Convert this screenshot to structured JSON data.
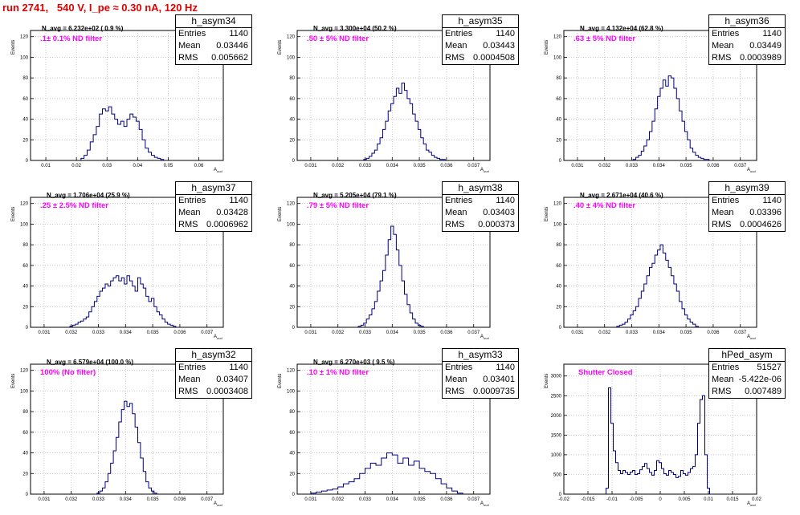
{
  "page_title": "run 2741,   540 V, I_pe ≈ 0.30 nA, 120 Hz",
  "y_axis_label": "Events",
  "x_axis_label": "A",
  "x_axis_label_sub": "uud",
  "colors": {
    "title": "#e00000",
    "filter_label": "#ff00ff",
    "histogram": "#000080",
    "grid": "#b0b0b0"
  },
  "pads": [
    {
      "name": "h_asym34",
      "entries": "1140",
      "mean": "0.03446",
      "rms": "0.005662",
      "navg": "N_avg = 6.232e+02 ( 0.9 %)",
      "filter": ".1± 0.1% ND filter",
      "chart_data": {
        "type": "histogram",
        "xlim": [
          0.005,
          0.068
        ],
        "ylim": [
          0,
          126
        ],
        "xticks": [
          0.01,
          0.02,
          0.03,
          0.04,
          0.05,
          0.06
        ],
        "xtick_labels": [
          "0.01",
          "0.02",
          "0.03",
          "0.04",
          "0.05",
          "0.06"
        ],
        "yticks": [
          0,
          20,
          40,
          60,
          80,
          100,
          120
        ],
        "x": [
          0.022,
          0.023,
          0.024,
          0.025,
          0.026,
          0.027,
          0.028,
          0.029,
          0.03,
          0.031,
          0.032,
          0.033,
          0.034,
          0.035,
          0.036,
          0.037,
          0.038,
          0.039,
          0.04,
          0.041,
          0.042,
          0.043,
          0.044,
          0.045,
          0.046,
          0.047,
          0.048
        ],
        "values": [
          2,
          5,
          10,
          18,
          25,
          33,
          45,
          50,
          48,
          52,
          45,
          40,
          35,
          38,
          33,
          40,
          45,
          42,
          38,
          30,
          20,
          12,
          8,
          5,
          3,
          2,
          1
        ]
      }
    },
    {
      "name": "h_asym35",
      "entries": "1140",
      "mean": "0.03443",
      "rms": "0.0004508",
      "navg": "N_avg = 3.300e+04 (50.2 %)",
      "filter": ".50 ± 5% ND filter",
      "chart_data": {
        "type": "histogram",
        "xlim": [
          0.0305,
          0.0376
        ],
        "ylim": [
          0,
          126
        ],
        "xticks": [
          0.031,
          0.032,
          0.033,
          0.034,
          0.035,
          0.036,
          0.037
        ],
        "xtick_labels": [
          "0.031",
          "0.032",
          "0.033",
          "0.034",
          "0.035",
          "0.036",
          "0.037"
        ],
        "yticks": [
          0,
          20,
          40,
          60,
          80,
          100,
          120
        ],
        "x": [
          0.033,
          0.0331,
          0.0332,
          0.0333,
          0.0334,
          0.0335,
          0.0336,
          0.0337,
          0.0338,
          0.0339,
          0.034,
          0.0341,
          0.0342,
          0.0343,
          0.0344,
          0.0345,
          0.0346,
          0.0347,
          0.0348,
          0.0349,
          0.035,
          0.0351,
          0.0352,
          0.0353,
          0.0354,
          0.0355,
          0.0356,
          0.0357,
          0.0358,
          0.0359
        ],
        "values": [
          1,
          2,
          4,
          7,
          10,
          16,
          22,
          30,
          38,
          48,
          55,
          62,
          70,
          65,
          75,
          68,
          60,
          55,
          45,
          38,
          30,
          22,
          16,
          10,
          8,
          5,
          3,
          2,
          1,
          1
        ]
      }
    },
    {
      "name": "h_asym36",
      "entries": "1140",
      "mean": "0.03449",
      "rms": "0.0003989",
      "navg": "N_avg = 4.132e+04 (62.8 %)",
      "filter": ".63 ± 5% ND filter",
      "chart_data": {
        "type": "histogram",
        "xlim": [
          0.0305,
          0.0376
        ],
        "ylim": [
          0,
          126
        ],
        "xticks": [
          0.031,
          0.032,
          0.033,
          0.034,
          0.035,
          0.036,
          0.037
        ],
        "xtick_labels": [
          "0.031",
          "0.032",
          "0.033",
          "0.034",
          "0.035",
          "0.036",
          "0.037"
        ],
        "yticks": [
          0,
          20,
          40,
          60,
          80,
          100,
          120
        ],
        "x": [
          0.0331,
          0.0332,
          0.0333,
          0.0334,
          0.0335,
          0.0336,
          0.0337,
          0.0338,
          0.0339,
          0.034,
          0.0341,
          0.0342,
          0.0343,
          0.0344,
          0.0345,
          0.0346,
          0.0347,
          0.0348,
          0.0349,
          0.035,
          0.0351,
          0.0352,
          0.0353,
          0.0354,
          0.0355,
          0.0356,
          0.0357,
          0.0358
        ],
        "values": [
          1,
          3,
          5,
          9,
          14,
          20,
          28,
          38,
          50,
          62,
          70,
          78,
          72,
          82,
          80,
          70,
          60,
          48,
          38,
          28,
          20,
          12,
          8,
          5,
          3,
          2,
          1,
          1
        ]
      }
    },
    {
      "name": "h_asym37",
      "entries": "1140",
      "mean": "0.03428",
      "rms": "0.0006962",
      "navg": "N_avg = 1.706e+04 (25.9 %)",
      "filter": ".25 ± 2.5% ND filter",
      "chart_data": {
        "type": "histogram",
        "xlim": [
          0.0305,
          0.0376
        ],
        "ylim": [
          0,
          126
        ],
        "xticks": [
          0.031,
          0.032,
          0.033,
          0.034,
          0.035,
          0.036,
          0.037
        ],
        "xtick_labels": [
          "0.031",
          "0.032",
          "0.033",
          "0.034",
          "0.035",
          "0.036",
          "0.037"
        ],
        "yticks": [
          0,
          20,
          40,
          60,
          80,
          100,
          120
        ],
        "x": [
          0.032,
          0.0321,
          0.0322,
          0.0323,
          0.0324,
          0.0325,
          0.0326,
          0.0327,
          0.0328,
          0.0329,
          0.033,
          0.0331,
          0.0332,
          0.0333,
          0.0334,
          0.0335,
          0.0336,
          0.0337,
          0.0338,
          0.0339,
          0.034,
          0.0341,
          0.0342,
          0.0343,
          0.0344,
          0.0345,
          0.0346,
          0.0347,
          0.0348,
          0.0349,
          0.035,
          0.0351,
          0.0352,
          0.0353,
          0.0354,
          0.0355,
          0.0356,
          0.0357,
          0.0358
        ],
        "values": [
          1,
          2,
          3,
          5,
          6,
          8,
          10,
          15,
          20,
          25,
          30,
          35,
          38,
          42,
          40,
          45,
          48,
          50,
          45,
          48,
          42,
          50,
          45,
          40,
          35,
          48,
          42,
          38,
          30,
          25,
          28,
          20,
          15,
          12,
          8,
          5,
          3,
          2,
          1
        ]
      }
    },
    {
      "name": "h_asym38",
      "entries": "1140",
      "mean": "0.03403",
      "rms": "0.000373",
      "navg": "N_avg = 5.205e+04 (79.1 %)",
      "filter": ".79 ± 5% ND filter",
      "chart_data": {
        "type": "histogram",
        "xlim": [
          0.0305,
          0.0376
        ],
        "ylim": [
          0,
          126
        ],
        "xticks": [
          0.031,
          0.032,
          0.033,
          0.034,
          0.035,
          0.036,
          0.037
        ],
        "xtick_labels": [
          "0.031",
          "0.032",
          "0.033",
          "0.034",
          "0.035",
          "0.036",
          "0.037"
        ],
        "yticks": [
          0,
          20,
          40,
          60,
          80,
          100,
          120
        ],
        "x": [
          0.0328,
          0.0329,
          0.033,
          0.0331,
          0.0332,
          0.0333,
          0.0334,
          0.0335,
          0.0336,
          0.0337,
          0.0338,
          0.0339,
          0.034,
          0.0341,
          0.0342,
          0.0343,
          0.0344,
          0.0345,
          0.0346,
          0.0347,
          0.0348,
          0.0349,
          0.035,
          0.0351
        ],
        "values": [
          1,
          2,
          4,
          8,
          12,
          18,
          25,
          35,
          45,
          55,
          70,
          85,
          98,
          90,
          75,
          60,
          45,
          32,
          22,
          14,
          8,
          4,
          2,
          1
        ]
      }
    },
    {
      "name": "h_asym39",
      "entries": "1140",
      "mean": "0.03396",
      "rms": "0.0004626",
      "navg": "N_avg = 2.671e+04 (40.6 %)",
      "filter": ".40 ± 4% ND filter",
      "chart_data": {
        "type": "histogram",
        "xlim": [
          0.0305,
          0.0376
        ],
        "ylim": [
          0,
          126
        ],
        "xticks": [
          0.031,
          0.032,
          0.033,
          0.034,
          0.035,
          0.036,
          0.037
        ],
        "xtick_labels": [
          "0.031",
          "0.032",
          "0.033",
          "0.034",
          "0.035",
          "0.036",
          "0.037"
        ],
        "yticks": [
          0,
          20,
          40,
          60,
          80,
          100,
          120
        ],
        "x": [
          0.0325,
          0.0326,
          0.0327,
          0.0328,
          0.0329,
          0.033,
          0.0331,
          0.0332,
          0.0333,
          0.0334,
          0.0335,
          0.0336,
          0.0337,
          0.0338,
          0.0339,
          0.034,
          0.0341,
          0.0342,
          0.0343,
          0.0344,
          0.0345,
          0.0346,
          0.0347,
          0.0348,
          0.0349,
          0.035,
          0.0351,
          0.0352,
          0.0353,
          0.0354
        ],
        "values": [
          1,
          2,
          3,
          5,
          8,
          12,
          16,
          20,
          28,
          35,
          42,
          50,
          58,
          62,
          70,
          75,
          80,
          72,
          65,
          58,
          50,
          42,
          35,
          25,
          18,
          12,
          8,
          5,
          3,
          1
        ]
      }
    },
    {
      "name": "h_asym32",
      "entries": "1140",
      "mean": "0.03407",
      "rms": "0.0003408",
      "navg": "N_avg = 6.579e+04 (100.0 %)",
      "filter": "100% (No filter)",
      "chart_data": {
        "type": "histogram",
        "xlim": [
          0.0305,
          0.0376
        ],
        "ylim": [
          0,
          126
        ],
        "xticks": [
          0.031,
          0.032,
          0.033,
          0.034,
          0.035,
          0.036,
          0.037
        ],
        "xtick_labels": [
          "0.031",
          "0.032",
          "0.033",
          "0.034",
          "0.035",
          "0.036",
          "0.037"
        ],
        "yticks": [
          0,
          20,
          40,
          60,
          80,
          100,
          120
        ],
        "x": [
          0.033,
          0.0331,
          0.0332,
          0.0333,
          0.0334,
          0.0335,
          0.0336,
          0.0337,
          0.0338,
          0.0339,
          0.034,
          0.0341,
          0.0342,
          0.0343,
          0.0344,
          0.0345,
          0.0346,
          0.0347,
          0.0348,
          0.0349,
          0.035,
          0.0351
        ],
        "values": [
          1,
          3,
          6,
          12,
          20,
          30,
          42,
          55,
          70,
          82,
          90,
          85,
          88,
          78,
          65,
          50,
          35,
          22,
          12,
          6,
          3,
          1
        ]
      }
    },
    {
      "name": "h_asym33",
      "entries": "1140",
      "mean": "0.03401",
      "rms": "0.0009735",
      "navg": "N_avg = 6.270e+03 ( 9.5 %)",
      "filter": ".10 ± 1% ND filter",
      "chart_data": {
        "type": "histogram",
        "xlim": [
          0.0305,
          0.0376
        ],
        "ylim": [
          0,
          126
        ],
        "xticks": [
          0.031,
          0.032,
          0.033,
          0.034,
          0.035,
          0.036,
          0.037
        ],
        "xtick_labels": [
          "0.031",
          "0.032",
          "0.033",
          "0.034",
          "0.035",
          "0.036",
          "0.037"
        ],
        "yticks": [
          0,
          20,
          40,
          60,
          80,
          100,
          120
        ],
        "x": [
          0.0311,
          0.0313,
          0.0315,
          0.0317,
          0.0319,
          0.0321,
          0.0323,
          0.0325,
          0.0327,
          0.0329,
          0.0331,
          0.0333,
          0.0335,
          0.0337,
          0.0339,
          0.0341,
          0.0343,
          0.0345,
          0.0347,
          0.0349,
          0.0351,
          0.0353,
          0.0355,
          0.0357,
          0.0359,
          0.0361,
          0.0363,
          0.0365
        ],
        "values": [
          1,
          2,
          3,
          4,
          5,
          7,
          10,
          12,
          15,
          20,
          25,
          30,
          28,
          35,
          40,
          38,
          30,
          35,
          28,
          32,
          25,
          22,
          20,
          15,
          10,
          6,
          3,
          1
        ]
      }
    },
    {
      "name": "hPed_asym",
      "entries": "51527",
      "mean": "-5.422e-06",
      "rms": "0.007489",
      "navg": "",
      "filter": "Shutter Closed",
      "chart_data": {
        "type": "histogram",
        "xlim": [
          -0.02,
          0.02
        ],
        "ylim": [
          0,
          3300
        ],
        "xticks": [
          -0.02,
          -0.015,
          -0.01,
          -0.005,
          0,
          0.005,
          0.01,
          0.015,
          0.02
        ],
        "xtick_labels": [
          "-0.02",
          "-0.015",
          "-0.01",
          "-0.005",
          "0",
          "0.005",
          "0.01",
          "0.015",
          "0.02"
        ],
        "yticks": [
          0,
          500,
          1000,
          1500,
          2000,
          2500,
          3000
        ],
        "x": [
          -0.011,
          -0.0105,
          -0.01,
          -0.0095,
          -0.009,
          -0.0085,
          -0.008,
          -0.0075,
          -0.007,
          -0.0065,
          -0.006,
          -0.0055,
          -0.005,
          -0.0045,
          -0.004,
          -0.0035,
          -0.003,
          -0.0025,
          -0.002,
          -0.0015,
          -0.001,
          -0.0005,
          0.0,
          0.0005,
          0.001,
          0.0015,
          0.002,
          0.0025,
          0.003,
          0.0035,
          0.004,
          0.0045,
          0.005,
          0.0055,
          0.006,
          0.0065,
          0.007,
          0.0075,
          0.008,
          0.0085,
          0.009,
          0.0095,
          0.01,
          0.0105
        ],
        "values": [
          150,
          2700,
          1800,
          1100,
          800,
          600,
          520,
          600,
          550,
          500,
          560,
          600,
          500,
          520,
          620,
          700,
          780,
          650,
          550,
          480,
          600,
          850,
          800,
          650,
          520,
          480,
          600,
          550,
          500,
          420,
          450,
          600,
          520,
          480,
          550,
          650,
          700,
          1000,
          1800,
          2400,
          2500,
          1000,
          150,
          0
        ]
      }
    }
  ]
}
